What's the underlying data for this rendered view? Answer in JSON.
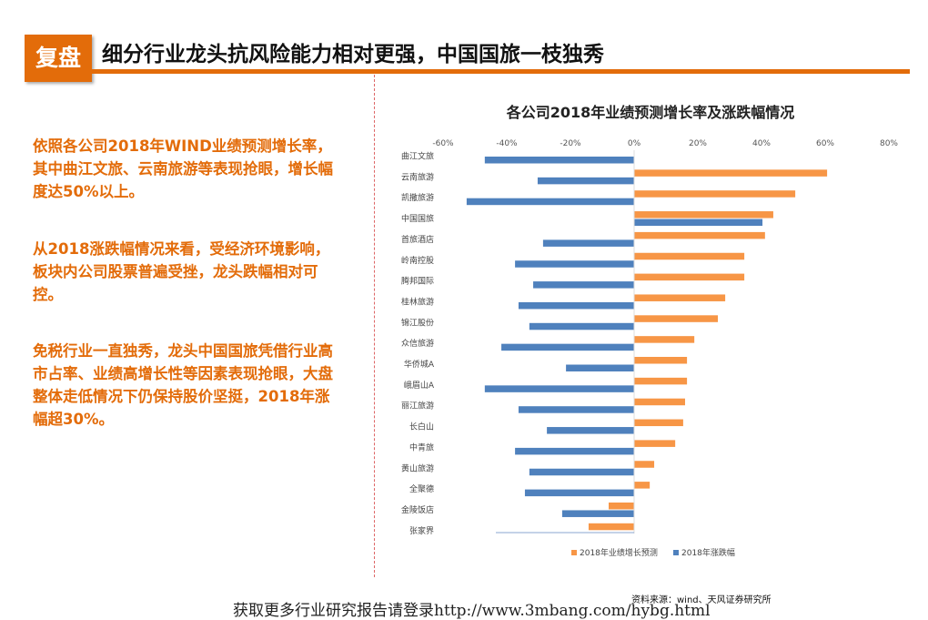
{
  "header": {
    "tag": "复盘",
    "title": "细分行业龙头抗风险能力相对更强，中国国旅一枝独秀"
  },
  "paragraphs": [
    "依照各公司2018年WIND业绩预测增长率，其中曲江文旅、云南旅游等表现抢眼，增长幅度达50%以上。",
    "从2018涨跌幅情况来看，受经济环境影响，板块内公司股票普遍受挫，龙头跌幅相对可控。",
    "免税行业一直独秀，龙头中国国旅凭借行业高市占率、业绩高增长性等因素表现抢眼，大盘整体走低情况下仍保持股价坚挺，2018年涨幅超30%。"
  ],
  "source": "资料来源：wind、天风证券研究所",
  "footer": "获取更多行业研究报告请登录http://www.3mbang.com/hybg.html",
  "chart_data": {
    "type": "bar",
    "orientation": "horizontal",
    "title": "各公司2018年业绩预测增长率及涨跌幅情况",
    "categories": [
      "曲江文旅",
      "云南旅游",
      "凯撒旅游",
      "中国国旅",
      "首旅酒店",
      "岭南控股",
      "腾邦国际",
      "桂林旅游",
      "锦江股份",
      "众信旅游",
      "华侨城A",
      "峨眉山A",
      "丽江旅游",
      "长白山",
      "中青旅",
      "黄山旅游",
      "全聚德",
      "金陵饭店",
      "张家界"
    ],
    "series": [
      {
        "name": "2018年业绩增长预测",
        "color": "#F79646",
        "values": [
          null,
          60.6,
          50.6,
          43.7,
          41.1,
          34.6,
          34.6,
          28.6,
          26.3,
          18.9,
          16.6,
          16.6,
          16.0,
          15.4,
          12.9,
          6.3,
          4.9,
          -8.0,
          -14.3
        ]
      },
      {
        "name": "2018年涨跌幅",
        "color": "#4F81BD",
        "values": [
          -46.9,
          -30.3,
          -52.6,
          40.3,
          -28.6,
          -37.4,
          -31.7,
          -36.3,
          -32.9,
          -41.7,
          -21.4,
          -46.9,
          -36.3,
          -27.4,
          -37.4,
          -32.9,
          -34.3,
          -22.6,
          null
        ]
      }
    ],
    "xlim": [
      -60,
      80
    ],
    "xticks": [
      "-60%",
      "-40%",
      "-20%",
      "0%",
      "20%",
      "40%",
      "60%",
      "80%"
    ],
    "legend": "bottom",
    "grid": false
  }
}
